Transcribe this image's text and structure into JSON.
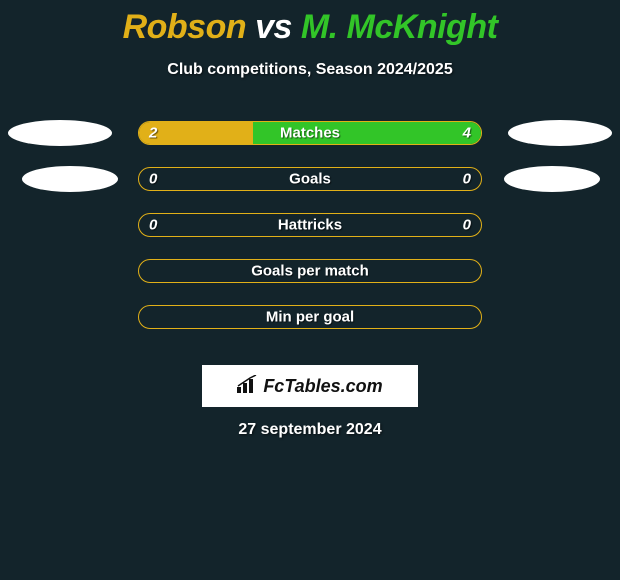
{
  "title": {
    "player1": "Robson",
    "vs": "vs",
    "player2": "M. McKnight"
  },
  "subtitle": "Club competitions, Season 2024/2025",
  "colors": {
    "bg": "#13242b",
    "p1": "#e1b018",
    "p2": "#32c528",
    "text": "#ffffff"
  },
  "bars": [
    {
      "label": "Matches",
      "left": "2",
      "right": "4",
      "left_pct": 33.3,
      "right_pct": 66.7,
      "show_values": true,
      "ellipses": "r1"
    },
    {
      "label": "Goals",
      "left": "0",
      "right": "0",
      "left_pct": 0,
      "right_pct": 0,
      "show_values": true,
      "ellipses": "r2"
    },
    {
      "label": "Hattricks",
      "left": "0",
      "right": "0",
      "left_pct": 0,
      "right_pct": 0,
      "show_values": true,
      "ellipses": "none"
    },
    {
      "label": "Goals per match",
      "left": "",
      "right": "",
      "left_pct": 0,
      "right_pct": 0,
      "show_values": false,
      "ellipses": "none"
    },
    {
      "label": "Min per goal",
      "left": "",
      "right": "",
      "left_pct": 0,
      "right_pct": 0,
      "show_values": false,
      "ellipses": "none"
    }
  ],
  "logo": "FcTables.com",
  "date": "27 september 2024"
}
